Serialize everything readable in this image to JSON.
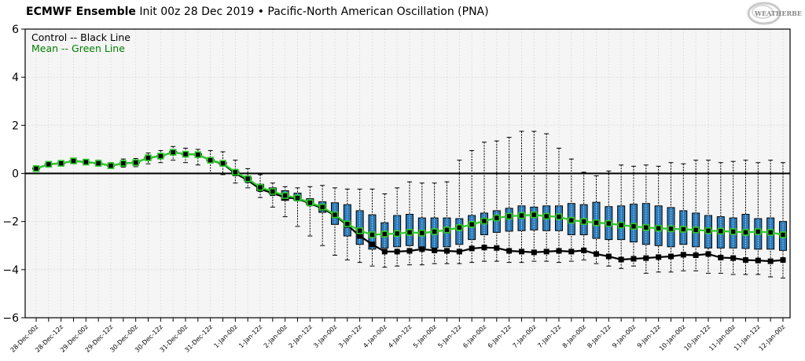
{
  "title": {
    "model": "ECMWF Ensemble",
    "subtitle": "Init 00z 28 Dec 2019 • Pacific-North American Oscillation (PNA)"
  },
  "logo_text": "WeatherBELL",
  "colors": {
    "box_fill": "#2b7bba",
    "mean_line": "#2ecc2e",
    "control_line": "#000000",
    "plot_bg": "#f5f5f5",
    "legend_mean_text": "#008000"
  },
  "chart_data": {
    "type": "box",
    "title": "ECMWF Ensemble Init 00z 28 Dec 2019 • Pacific-North American Oscillation (PNA)",
    "ylim": [
      -6,
      6
    ],
    "yticks": [
      -6,
      -4,
      -2,
      0,
      2,
      4,
      6
    ],
    "ytick_labels": [
      "−6",
      "−4",
      "−2",
      "0",
      "2",
      "4",
      "6"
    ],
    "grid": true,
    "legend": {
      "position": "top-left",
      "entries": [
        "Control -- Black Line",
        "Mean -- Green Line"
      ]
    },
    "xtick_labels": [
      "28-Dec-00z",
      "28-Dec-12z",
      "29-Dec-00z",
      "29-Dec-12z",
      "30-Dec-00z",
      "30-Dec-12z",
      "31-Dec-00z",
      "31-Dec-12z",
      "1-Jan-00z",
      "1-Jan-12z",
      "2-Jan-00z",
      "2-Jan-12z",
      "3-Jan-00z",
      "3-Jan-12z",
      "4-Jan-00z",
      "4-Jan-12z",
      "5-Jan-00z",
      "5-Jan-12z",
      "6-Jan-00z",
      "6-Jan-12z",
      "7-Jan-00z",
      "7-Jan-12z",
      "8-Jan-00z",
      "8-Jan-12z",
      "9-Jan-00z",
      "9-Jan-12z",
      "10-Jan-00z",
      "10-Jan-12z",
      "11-Jan-00z",
      "11-Jan-12z",
      "12-Jan-00z"
    ],
    "step_hours": 6,
    "mean": [
      0.2,
      0.38,
      0.42,
      0.52,
      0.47,
      0.42,
      0.32,
      0.42,
      0.45,
      0.65,
      0.72,
      0.88,
      0.8,
      0.78,
      0.55,
      0.42,
      0.05,
      -0.22,
      -0.58,
      -0.75,
      -0.92,
      -1.02,
      -1.22,
      -1.4,
      -1.72,
      -2.1,
      -2.38,
      -2.55,
      -2.52,
      -2.5,
      -2.45,
      -2.48,
      -2.42,
      -2.35,
      -2.25,
      -2.12,
      -1.98,
      -1.85,
      -1.78,
      -1.75,
      -1.72,
      -1.78,
      -1.8,
      -1.95,
      -2.0,
      -2.05,
      -2.08,
      -2.15,
      -2.2,
      -2.25,
      -2.28,
      -2.3,
      -2.32,
      -2.35,
      -2.38,
      -2.4,
      -2.42,
      -2.45,
      -2.42,
      -2.45,
      -2.55
    ],
    "control": [
      0.2,
      0.38,
      0.42,
      0.52,
      0.47,
      0.42,
      0.32,
      0.42,
      0.45,
      0.65,
      0.72,
      0.88,
      0.8,
      0.78,
      0.55,
      0.4,
      0.0,
      -0.28,
      -0.65,
      -0.82,
      -1.0,
      -1.05,
      -1.25,
      -1.45,
      -1.75,
      -2.15,
      -2.6,
      -2.95,
      -3.25,
      -3.25,
      -3.22,
      -3.15,
      -3.2,
      -3.22,
      -3.25,
      -3.12,
      -3.08,
      -3.1,
      -3.22,
      -3.25,
      -3.28,
      -3.25,
      -3.22,
      -3.25,
      -3.2,
      -3.35,
      -3.45,
      -3.58,
      -3.55,
      -3.52,
      -3.48,
      -3.45,
      -3.38,
      -3.4,
      -3.35,
      -3.5,
      -3.52,
      -3.6,
      -3.62,
      -3.65,
      -3.6
    ],
    "q1": [
      0.18,
      0.36,
      0.4,
      0.5,
      0.45,
      0.4,
      0.3,
      0.4,
      0.42,
      0.62,
      0.7,
      0.85,
      0.78,
      0.75,
      0.52,
      0.38,
      0.0,
      -0.3,
      -0.72,
      -0.85,
      -1.12,
      -1.12,
      -1.3,
      -1.62,
      -2.12,
      -2.6,
      -2.95,
      -3.15,
      -3.1,
      -3.05,
      -3.0,
      -3.1,
      -3.1,
      -3.05,
      -2.95,
      -2.75,
      -2.55,
      -2.45,
      -2.4,
      -2.38,
      -2.35,
      -2.38,
      -2.38,
      -2.55,
      -2.55,
      -2.7,
      -2.75,
      -2.75,
      -2.85,
      -2.95,
      -3.0,
      -3.05,
      -2.95,
      -3.05,
      -3.1,
      -3.1,
      -3.1,
      -3.12,
      -3.15,
      -3.15,
      -3.2
    ],
    "q3": [
      0.22,
      0.4,
      0.44,
      0.54,
      0.49,
      0.44,
      0.34,
      0.44,
      0.48,
      0.68,
      0.75,
      0.92,
      0.83,
      0.82,
      0.58,
      0.46,
      0.1,
      -0.15,
      -0.45,
      -0.6,
      -0.72,
      -0.82,
      -1.05,
      -1.18,
      -1.22,
      -1.3,
      -1.55,
      -1.72,
      -2.05,
      -1.75,
      -1.7,
      -1.85,
      -1.85,
      -1.85,
      -1.88,
      -1.75,
      -1.65,
      -1.55,
      -1.45,
      -1.35,
      -1.4,
      -1.35,
      -1.35,
      -1.25,
      -1.3,
      -1.2,
      -1.38,
      -1.35,
      -1.28,
      -1.25,
      -1.35,
      -1.42,
      -1.55,
      -1.65,
      -1.75,
      -1.8,
      -1.85,
      -1.7,
      -1.88,
      -1.85,
      -2.0
    ],
    "min": [
      0.16,
      0.34,
      0.36,
      0.46,
      0.4,
      0.3,
      0.2,
      0.26,
      0.28,
      0.4,
      0.45,
      0.55,
      0.45,
      0.35,
      0.02,
      -0.05,
      -0.4,
      -0.6,
      -1.0,
      -1.4,
      -1.8,
      -2.2,
      -2.6,
      -3.0,
      -3.4,
      -3.6,
      -3.7,
      -3.85,
      -3.9,
      -3.85,
      -3.8,
      -3.8,
      -3.75,
      -3.75,
      -3.75,
      -3.7,
      -3.65,
      -3.65,
      -3.7,
      -3.7,
      -3.65,
      -3.65,
      -3.7,
      -3.65,
      -3.6,
      -3.75,
      -3.85,
      -3.95,
      -3.85,
      -4.15,
      -4.1,
      -4.1,
      -4.05,
      -4.05,
      -4.15,
      -4.15,
      -4.2,
      -4.2,
      -4.2,
      -4.3,
      -4.35
    ],
    "max": [
      0.24,
      0.42,
      0.48,
      0.58,
      0.55,
      0.55,
      0.45,
      0.6,
      0.62,
      0.85,
      0.95,
      1.12,
      1.05,
      1.0,
      0.95,
      0.9,
      0.55,
      0.2,
      -0.05,
      -0.4,
      -0.55,
      -0.6,
      -0.55,
      -0.5,
      -0.6,
      -0.65,
      -0.65,
      -0.65,
      -0.85,
      -0.6,
      -0.35,
      -0.4,
      -0.4,
      -0.35,
      0.55,
      0.95,
      1.3,
      1.35,
      1.5,
      1.75,
      1.75,
      1.65,
      1.05,
      0.6,
      0.05,
      -0.1,
      0.1,
      0.35,
      0.3,
      0.35,
      0.3,
      0.45,
      0.4,
      0.55,
      0.55,
      0.45,
      0.5,
      0.55,
      0.45,
      0.55,
      0.45
    ]
  }
}
